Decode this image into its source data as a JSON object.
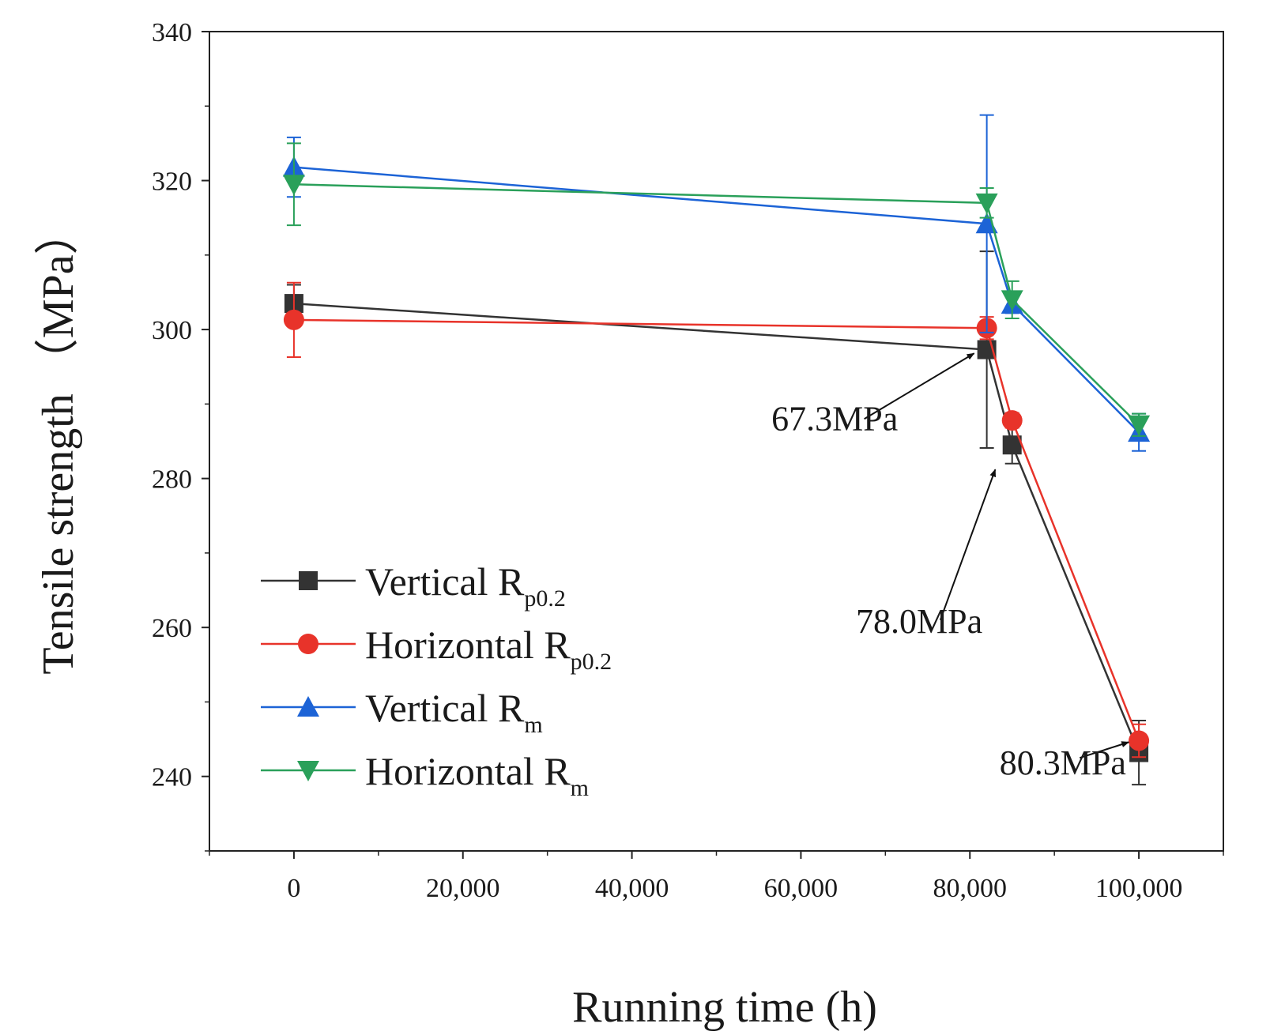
{
  "chart_data": {
    "type": "line",
    "xlabel": "Running time (h)",
    "ylabel": "Tensile strength （MPa）",
    "xlim": [
      -10000,
      110000
    ],
    "ylim": [
      230,
      340
    ],
    "xticks": [
      0,
      20000,
      40000,
      60000,
      80000,
      100000
    ],
    "xtick_labels": [
      "0",
      "20,000",
      "40,000",
      "60,000",
      "80,000",
      "100,000"
    ],
    "yticks": [
      240,
      260,
      280,
      300,
      320,
      340
    ],
    "ytick_labels": [
      "240",
      "260",
      "280",
      "300",
      "320",
      "340"
    ],
    "legend_position": "lower-left",
    "series": [
      {
        "name": "Vertical Rp0.2",
        "legend_main": "Vertical R",
        "legend_sub": "p0.2",
        "color": "#333333",
        "marker": "square",
        "x": [
          0,
          82000,
          85000,
          100000
        ],
        "y": [
          303.5,
          297.3,
          284.5,
          243.2
        ],
        "err": [
          2.5,
          13.2,
          2.5,
          4.3
        ]
      },
      {
        "name": "Horizontal Rp0.2",
        "legend_main": "Horizontal R",
        "legend_sub": "p0.2",
        "color": "#e8332a",
        "marker": "circle",
        "x": [
          0,
          82000,
          85000,
          100000
        ],
        "y": [
          301.3,
          300.2,
          287.8,
          244.8
        ],
        "err": [
          5.0,
          1.5,
          1.0,
          2.2
        ]
      },
      {
        "name": "Vertical Rm",
        "legend_main": "Vertical R",
        "legend_sub": "m",
        "color": "#1c63d6",
        "marker": "triangle-up",
        "x": [
          0,
          82000,
          85000,
          100000
        ],
        "y": [
          321.8,
          314.2,
          303.4,
          286.2
        ],
        "err": [
          4.0,
          14.6,
          1.2,
          2.5
        ]
      },
      {
        "name": "Horizontal Rm",
        "legend_main": "Horizontal R",
        "legend_sub": "m",
        "color": "#2aa05a",
        "marker": "triangle-down",
        "x": [
          0,
          82000,
          85000,
          100000
        ],
        "y": [
          319.5,
          317.0,
          304.0,
          287.2
        ],
        "err": [
          5.5,
          2.0,
          2.5,
          1.5
        ]
      }
    ],
    "annotations": [
      {
        "text": "67.3MPa",
        "text_x": 64000,
        "text_y": 286.5,
        "arrow_from_x": 67500,
        "arrow_from_y": 288,
        "arrow_to_x": 80500,
        "arrow_to_y": 296.8
      },
      {
        "text": "78.0MPa",
        "text_x": 74000,
        "text_y": 259.3,
        "arrow_from_x": 76500,
        "arrow_from_y": 261,
        "arrow_to_x": 83000,
        "arrow_to_y": 281.2
      },
      {
        "text": "80.3MPa",
        "text_x": 91000,
        "text_y": 240.3,
        "arrow_from_x": 93000,
        "arrow_from_y": 242.5,
        "arrow_to_x": 98800,
        "arrow_to_y": 244.6
      }
    ]
  }
}
